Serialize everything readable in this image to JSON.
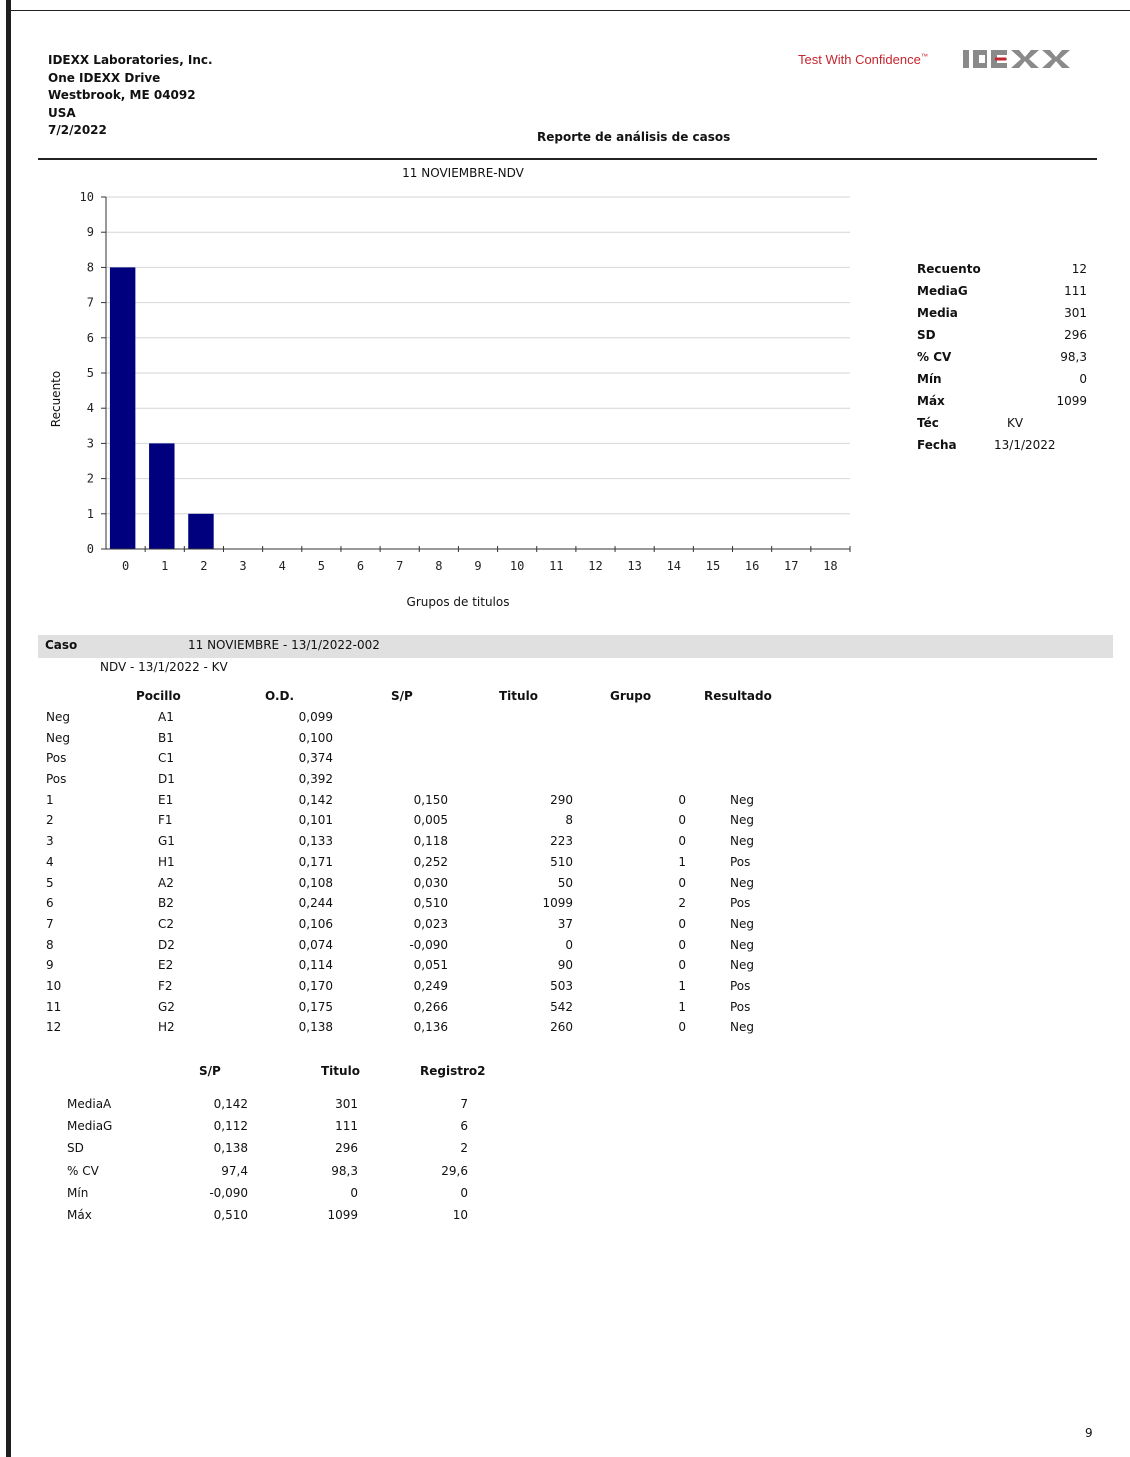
{
  "header": {
    "address": [
      "IDEXX Laboratories, Inc.",
      "One IDEXX Drive",
      "Westbrook, ME 04092",
      "USA",
      "7/2/2022"
    ],
    "slogan": "Test With Confidence",
    "slogan_mark": "™",
    "logo_text": "IDEXX",
    "report_title": "Reporte de análisis de casos"
  },
  "chart_data": {
    "type": "bar",
    "title": "11 NOVIEMBRE-NDV",
    "xlabel": "Grupos de titulos",
    "ylabel": "Recuento",
    "categories": [
      "0",
      "1",
      "2",
      "3",
      "4",
      "5",
      "6",
      "7",
      "8",
      "9",
      "10",
      "11",
      "12",
      "13",
      "14",
      "15",
      "16",
      "17",
      "18"
    ],
    "values": [
      8,
      3,
      1,
      0,
      0,
      0,
      0,
      0,
      0,
      0,
      0,
      0,
      0,
      0,
      0,
      0,
      0,
      0,
      0
    ],
    "ylim": [
      0,
      10
    ],
    "yticks": [
      "0",
      "1",
      "2",
      "3",
      "4",
      "5",
      "6",
      "7",
      "8",
      "9",
      "10"
    ],
    "grid": true,
    "bar_color": "#00007f"
  },
  "stats": {
    "count_label": "Recuento",
    "count": "12",
    "gmean_label": "MediaG",
    "gmean": "111",
    "mean_label": "Media",
    "mean": "301",
    "sd_label": "SD",
    "sd": "296",
    "cv_label": "% CV",
    "cv": "98,3",
    "min_label": "Mín",
    "min": "0",
    "max_label": "Máx",
    "max": "1099",
    "tech_label": "Téc",
    "tech": "KV",
    "date_label": "Fecha",
    "date": "13/1/2022"
  },
  "case": {
    "label": "Caso",
    "value": "11 NOVIEMBRE - 13/1/2022-002",
    "sub": "NDV - 13/1/2022 - KV"
  },
  "table": {
    "headers": {
      "well": "Pocillo",
      "od": "O.D.",
      "sp": "S/P",
      "titer": "Titulo",
      "group": "Grupo",
      "result": "Resultado"
    },
    "rows": [
      {
        "id": "Neg",
        "well": "A1",
        "od": "0,099",
        "sp": "",
        "titer": "",
        "group": "",
        "result": ""
      },
      {
        "id": "Neg",
        "well": "B1",
        "od": "0,100",
        "sp": "",
        "titer": "",
        "group": "",
        "result": ""
      },
      {
        "id": "Pos",
        "well": "C1",
        "od": "0,374",
        "sp": "",
        "titer": "",
        "group": "",
        "result": ""
      },
      {
        "id": "Pos",
        "well": "D1",
        "od": "0,392",
        "sp": "",
        "titer": "",
        "group": "",
        "result": ""
      },
      {
        "id": "1",
        "well": "E1",
        "od": "0,142",
        "sp": "0,150",
        "titer": "290",
        "group": "0",
        "result": "Neg"
      },
      {
        "id": "2",
        "well": "F1",
        "od": "0,101",
        "sp": "0,005",
        "titer": "8",
        "group": "0",
        "result": "Neg"
      },
      {
        "id": "3",
        "well": "G1",
        "od": "0,133",
        "sp": "0,118",
        "titer": "223",
        "group": "0",
        "result": "Neg"
      },
      {
        "id": "4",
        "well": "H1",
        "od": "0,171",
        "sp": "0,252",
        "titer": "510",
        "group": "1",
        "result": "Pos"
      },
      {
        "id": "5",
        "well": "A2",
        "od": "0,108",
        "sp": "0,030",
        "titer": "50",
        "group": "0",
        "result": "Neg"
      },
      {
        "id": "6",
        "well": "B2",
        "od": "0,244",
        "sp": "0,510",
        "titer": "1099",
        "group": "2",
        "result": "Pos"
      },
      {
        "id": "7",
        "well": "C2",
        "od": "0,106",
        "sp": "0,023",
        "titer": "37",
        "group": "0",
        "result": "Neg"
      },
      {
        "id": "8",
        "well": "D2",
        "od": "0,074",
        "sp": "-0,090",
        "titer": "0",
        "group": "0",
        "result": "Neg"
      },
      {
        "id": "9",
        "well": "E2",
        "od": "0,114",
        "sp": "0,051",
        "titer": "90",
        "group": "0",
        "result": "Neg"
      },
      {
        "id": "10",
        "well": "F2",
        "od": "0,170",
        "sp": "0,249",
        "titer": "503",
        "group": "1",
        "result": "Pos"
      },
      {
        "id": "11",
        "well": "G2",
        "od": "0,175",
        "sp": "0,266",
        "titer": "542",
        "group": "1",
        "result": "Pos"
      },
      {
        "id": "12",
        "well": "H2",
        "od": "0,138",
        "sp": "0,136",
        "titer": "260",
        "group": "0",
        "result": "Neg"
      }
    ]
  },
  "summary": {
    "headers": {
      "sp": "S/P",
      "titer": "Titulo",
      "log2": "Registro2"
    },
    "rows": [
      {
        "label": "MediaA",
        "sp": "0,142",
        "titer": "301",
        "log2": "7"
      },
      {
        "label": "MediaG",
        "sp": "0,112",
        "titer": "111",
        "log2": "6"
      },
      {
        "label": "SD",
        "sp": "0,138",
        "titer": "296",
        "log2": "2"
      },
      {
        "label": "% CV",
        "sp": "97,4",
        "titer": "98,3",
        "log2": "29,6"
      },
      {
        "label": "Mín",
        "sp": "-0,090",
        "titer": "0",
        "log2": "0"
      },
      {
        "label": "Máx",
        "sp": "0,510",
        "titer": "1099",
        "log2": "10"
      }
    ]
  },
  "page_number": "9"
}
